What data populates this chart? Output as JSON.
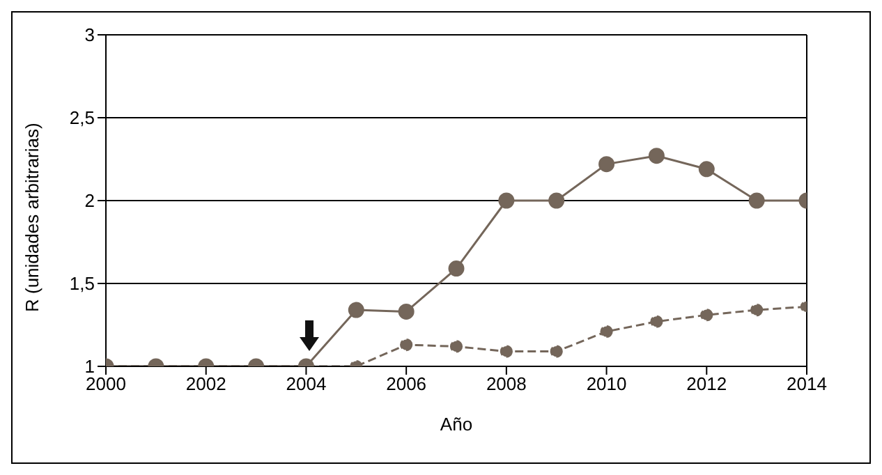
{
  "chart_data": {
    "type": "line",
    "xlabel": "Año",
    "ylabel": "R (unidades arbitrarias)",
    "x": [
      2000,
      2001,
      2002,
      2003,
      2004,
      2005,
      2006,
      2007,
      2008,
      2009,
      2010,
      2011,
      2012,
      2013,
      2014
    ],
    "series": [
      {
        "color": "#74665a",
        "line_style": "solid",
        "values": [
          1,
          1,
          1,
          1,
          1,
          1.34,
          1.33,
          1.59,
          2,
          2,
          2.22,
          2.27,
          2.19,
          2,
          2
        ]
      },
      {
        "color": "#74665a",
        "line_style": "dashed",
        "values": [
          1,
          1,
          1,
          1,
          1,
          1,
          1.13,
          1.12,
          1.09,
          1.09,
          1.21,
          1.27,
          1.31,
          1.34,
          1.36
        ]
      }
    ],
    "xlim": [
      2000,
      2014
    ],
    "xticks": [
      2000,
      2002,
      2004,
      2006,
      2008,
      2010,
      2012,
      2014
    ],
    "ylim": [
      1,
      3
    ],
    "yticks": [
      {
        "value": 1,
        "label": "1"
      },
      {
        "value": 1.5,
        "label": "1,5"
      },
      {
        "value": 2,
        "label": "2"
      },
      {
        "value": 2.5,
        "label": "2,5"
      },
      {
        "value": 3,
        "label": "3"
      }
    ],
    "grid": "y",
    "marker": "circle"
  }
}
